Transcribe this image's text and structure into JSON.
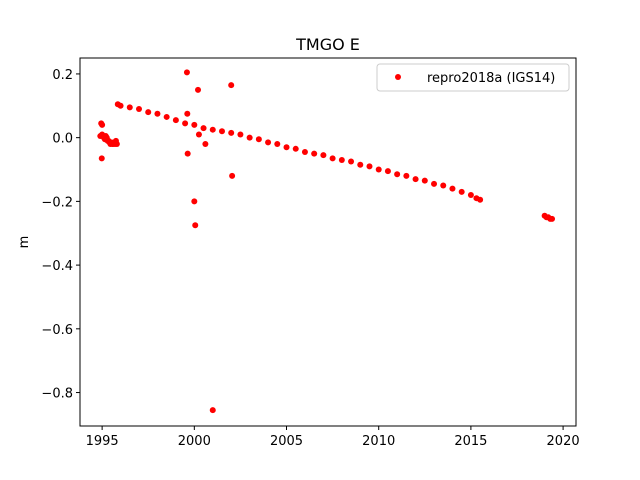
{
  "chart_data": {
    "type": "scatter",
    "title": "TMGO E",
    "xlabel": "",
    "ylabel": "m",
    "xlim": [
      1993.8,
      2020.7
    ],
    "ylim": [
      -0.905,
      0.25
    ],
    "xticks": [
      1995,
      2000,
      2005,
      2010,
      2015,
      2020
    ],
    "xtick_labels": [
      "1995",
      "2000",
      "2005",
      "2010",
      "2015",
      "2020"
    ],
    "yticks": [
      0.2,
      0.0,
      -0.2,
      -0.4,
      -0.6,
      -0.8
    ],
    "ytick_labels": [
      "0.2",
      "0.0",
      "−0.2",
      "−0.4",
      "−0.6",
      "−0.8"
    ],
    "grid": false,
    "legend_position": "top-right",
    "series": [
      {
        "name": "repro2018a (IGS14)",
        "color": "#ff0000",
        "marker": "circle",
        "x": [
          1994.9,
          1995.0,
          1995.1,
          1995.15,
          1995.2,
          1995.25,
          1995.3,
          1995.35,
          1995.4,
          1995.45,
          1995.5,
          1995.55,
          1995.6,
          1995.65,
          1995.7,
          1995.75,
          1995.8,
          1994.95,
          1995.0,
          1994.98,
          1995.85,
          1996.0,
          1996.5,
          1997.0,
          1997.5,
          1998.0,
          1998.5,
          1999.0,
          1999.5,
          2000.0,
          2000.5,
          2001.0,
          2001.5,
          2002.0,
          2002.5,
          2003.0,
          2003.5,
          2004.0,
          2004.5,
          2005.0,
          2005.5,
          2006.0,
          2006.5,
          2007.0,
          2007.5,
          2008.0,
          2008.5,
          2009.0,
          2009.5,
          2010.0,
          2010.5,
          2011.0,
          2011.5,
          2012.0,
          2012.5,
          2013.0,
          2013.5,
          2014.0,
          2014.5,
          2015.0,
          2015.3,
          2015.5,
          1999.6,
          1999.62,
          1999.64,
          2000.0,
          2000.05,
          2000.2,
          2000.25,
          2000.6,
          2001.0,
          2002.0,
          2002.05,
          2019.0,
          2019.1,
          2019.2,
          2019.3,
          2019.4
        ],
        "y": [
          0.005,
          0.01,
          0.0,
          -0.005,
          0.005,
          0.0,
          -0.01,
          -0.01,
          -0.015,
          -0.02,
          -0.015,
          -0.02,
          -0.02,
          -0.015,
          -0.02,
          -0.01,
          -0.02,
          0.045,
          0.04,
          -0.065,
          0.105,
          0.1,
          0.095,
          0.09,
          0.08,
          0.075,
          0.065,
          0.055,
          0.045,
          0.04,
          0.03,
          0.025,
          0.02,
          0.015,
          0.01,
          0.0,
          -0.005,
          -0.015,
          -0.02,
          -0.03,
          -0.035,
          -0.045,
          -0.05,
          -0.055,
          -0.065,
          -0.07,
          -0.075,
          -0.085,
          -0.09,
          -0.1,
          -0.105,
          -0.115,
          -0.12,
          -0.13,
          -0.135,
          -0.145,
          -0.15,
          -0.16,
          -0.17,
          -0.18,
          -0.19,
          -0.195,
          0.205,
          0.075,
          -0.05,
          -0.2,
          -0.275,
          0.15,
          0.01,
          -0.02,
          -0.855,
          0.165,
          -0.12,
          -0.245,
          -0.25,
          -0.25,
          -0.255,
          -0.255
        ]
      }
    ]
  }
}
